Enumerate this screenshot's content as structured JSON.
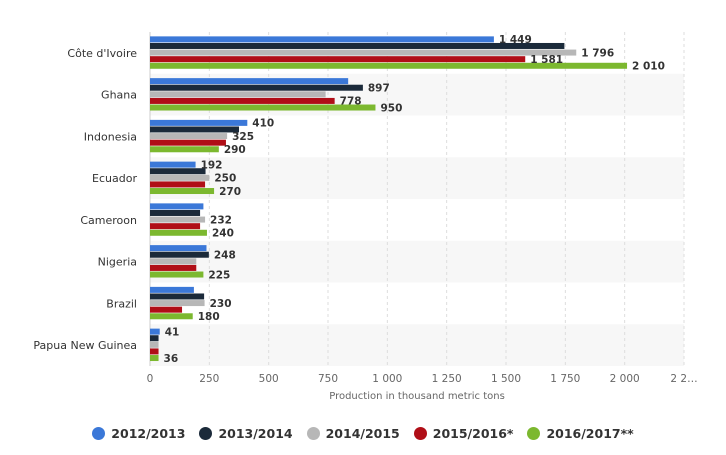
{
  "chart_data": {
    "type": "bar",
    "orientation": "horizontal",
    "categories": [
      "Côte d'Ivoire",
      "Ghana",
      "Indonesia",
      "Ecuador",
      "Cameroon",
      "Nigeria",
      "Brazil",
      "Papua New Guinea"
    ],
    "series": [
      {
        "name": "2012/2013",
        "color": "#3b78d8",
        "values": [
          1449,
          835,
          410,
          192,
          225,
          238,
          185,
          41
        ]
      },
      {
        "name": "2013/2014",
        "color": "#1b2a3a",
        "values": [
          1746,
          897,
          375,
          234,
          211,
          248,
          228,
          36
        ]
      },
      {
        "name": "2014/2015",
        "color": "#b7b7b7",
        "values": [
          1796,
          740,
          325,
          250,
          232,
          195,
          230,
          36
        ]
      },
      {
        "name": "2015/2016*",
        "color": "#b00e17",
        "values": [
          1581,
          778,
          320,
          232,
          211,
          195,
          135,
          36
        ]
      },
      {
        "name": "2016/2017**",
        "color": "#7cb82f",
        "values": [
          2010,
          950,
          290,
          270,
          240,
          225,
          180,
          36
        ]
      }
    ],
    "data_labels": [
      [
        "1 449",
        "",
        "",
        "",
        ""
      ],
      [
        "",
        "897",
        "",
        "778",
        "950"
      ],
      [
        "410",
        "",
        "325",
        "",
        "290"
      ],
      [
        "192",
        "",
        "250",
        "",
        "270"
      ],
      [
        "",
        "",
        "232",
        "",
        "240"
      ],
      [
        "",
        "248",
        "",
        "",
        "225"
      ],
      [
        "",
        "",
        "230",
        "",
        "180"
      ],
      [
        "41",
        "",
        "",
        "",
        "36"
      ]
    ],
    "extra_labels": {
      "1_796": "1 796",
      "1_581": "1 581",
      "2_010": "2 010"
    },
    "x_ticks": [
      0,
      250,
      500,
      750,
      1000,
      1250,
      1500,
      1750,
      2000,
      2250
    ],
    "x_tick_labels": [
      "0",
      "250",
      "500",
      "750",
      "1 000",
      "1 250",
      "1 500",
      "1 750",
      "2 000",
      "2 2…"
    ],
    "xlim": [
      0,
      2250
    ],
    "xlabel": "Production in thousand metric tons",
    "title": "",
    "grid": true,
    "legend_position": "bottom"
  }
}
